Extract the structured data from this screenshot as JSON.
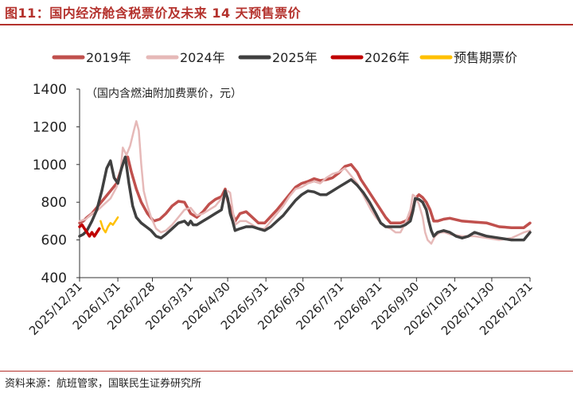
{
  "header": {
    "title": "图11：国内经济舱含税票价及未来 14 天预售票价"
  },
  "footer": {
    "source": "资料来源：航班管家，国联民生证券研究所"
  },
  "chart_data": {
    "type": "line",
    "title": "图11：国内经济舱含税票价及未来 14 天预售票价",
    "annotation": "（国内含燃油附加费票价，元）",
    "ylim": [
      400,
      1400
    ],
    "yticks": [
      400,
      600,
      800,
      1000,
      1200,
      1400
    ],
    "xlim": [
      0,
      365
    ],
    "x_ticks": [
      {
        "label": "2025/12/31",
        "x": 0
      },
      {
        "label": "2026/1/31",
        "x": 31
      },
      {
        "label": "2026/2/28",
        "x": 59
      },
      {
        "label": "2026/3/31",
        "x": 90
      },
      {
        "label": "2026/4/30",
        "x": 120
      },
      {
        "label": "2026/5/31",
        "x": 151
      },
      {
        "label": "2026/6/30",
        "x": 181
      },
      {
        "label": "2026/7/31",
        "x": 212
      },
      {
        "label": "2026/8/31",
        "x": 243
      },
      {
        "label": "2026/9/30",
        "x": 273
      },
      {
        "label": "2026/10/31",
        "x": 304
      },
      {
        "label": "2026/11/30",
        "x": 334
      },
      {
        "label": "2026/12/31",
        "x": 365
      }
    ],
    "x_unit": "days since 2025/12/31",
    "legend_position": "top",
    "series": [
      {
        "name": "2019年",
        "color": "#c0504d",
        "width": 3.5,
        "x": [
          0,
          3,
          6,
          10,
          15,
          20,
          25,
          30,
          33,
          36,
          39,
          42,
          46,
          50,
          55,
          60,
          65,
          70,
          75,
          80,
          85,
          90,
          95,
          100,
          105,
          110,
          115,
          118,
          120,
          122,
          124,
          126,
          130,
          135,
          140,
          145,
          150,
          155,
          160,
          165,
          170,
          175,
          180,
          185,
          190,
          195,
          200,
          205,
          210,
          215,
          220,
          225,
          228,
          232,
          236,
          240,
          244,
          248,
          252,
          256,
          260,
          264,
          268,
          270,
          272,
          275,
          278,
          281,
          284,
          287,
          290,
          295,
          300,
          310,
          320,
          330,
          340,
          350,
          360,
          365
        ],
        "values": [
          690,
          700,
          720,
          740,
          780,
          820,
          860,
          900,
          960,
          1020,
          1040,
          960,
          870,
          800,
          740,
          700,
          710,
          740,
          780,
          805,
          800,
          740,
          720,
          750,
          790,
          815,
          830,
          870,
          810,
          770,
          740,
          700,
          740,
          750,
          720,
          690,
          690,
          725,
          760,
          800,
          840,
          880,
          900,
          910,
          925,
          915,
          920,
          930,
          955,
          990,
          1000,
          960,
          920,
          880,
          840,
          800,
          760,
          720,
          690,
          690,
          690,
          700,
          720,
          760,
          820,
          840,
          825,
          800,
          760,
          700,
          700,
          710,
          715,
          700,
          695,
          690,
          670,
          665,
          665,
          690
        ]
      },
      {
        "name": "2024年",
        "color": "#e6b9b8",
        "width": 2.5,
        "x": [
          0,
          5,
          10,
          15,
          20,
          25,
          30,
          33,
          35,
          38,
          41,
          44,
          46,
          48,
          50,
          52,
          55,
          58,
          62,
          66,
          70,
          75,
          80,
          85,
          90,
          95,
          100,
          105,
          110,
          115,
          120,
          122,
          124,
          126,
          130,
          135,
          140,
          145,
          150,
          155,
          160,
          165,
          170,
          175,
          180,
          185,
          190,
          195,
          200,
          205,
          210,
          215,
          220,
          225,
          228,
          232,
          236,
          240,
          244,
          248,
          252,
          256,
          260,
          264,
          268,
          270,
          272,
          275,
          278,
          280,
          282,
          285,
          288,
          292,
          296,
          300,
          310,
          320,
          330,
          340,
          350,
          360,
          365
        ],
        "values": [
          700,
          710,
          740,
          760,
          790,
          820,
          880,
          950,
          1090,
          1050,
          1100,
          1180,
          1230,
          1180,
          1000,
          860,
          780,
          720,
          660,
          640,
          650,
          680,
          720,
          760,
          770,
          730,
          740,
          760,
          780,
          820,
          860,
          850,
          760,
          680,
          700,
          700,
          680,
          660,
          660,
          700,
          740,
          780,
          830,
          870,
          880,
          900,
          910,
          900,
          930,
          950,
          960,
          980,
          940,
          900,
          860,
          810,
          760,
          720,
          690,
          670,
          660,
          640,
          640,
          690,
          760,
          840,
          830,
          790,
          720,
          640,
          600,
          580,
          620,
          640,
          640,
          630,
          620,
          620,
          610,
          600,
          610,
          640,
          650
        ]
      },
      {
        "name": "2025年",
        "color": "#404040",
        "width": 3.5,
        "x": [
          0,
          3,
          6,
          10,
          14,
          18,
          22,
          25,
          28,
          31,
          34,
          37,
          40,
          43,
          46,
          50,
          54,
          58,
          62,
          66,
          70,
          75,
          80,
          85,
          88,
          90,
          92,
          95,
          100,
          105,
          110,
          115,
          118,
          120,
          122,
          124,
          126,
          130,
          135,
          140,
          145,
          150,
          155,
          160,
          165,
          170,
          175,
          180,
          185,
          190,
          195,
          200,
          205,
          210,
          215,
          220,
          225,
          230,
          235,
          240,
          244,
          248,
          252,
          256,
          260,
          264,
          268,
          270,
          272,
          275,
          278,
          281,
          283,
          285,
          287,
          290,
          295,
          300,
          305,
          310,
          315,
          320,
          330,
          340,
          350,
          360,
          365
        ],
        "values": [
          620,
          630,
          650,
          700,
          760,
          860,
          980,
          1020,
          930,
          900,
          980,
          1040,
          900,
          780,
          720,
          690,
          670,
          650,
          620,
          610,
          630,
          660,
          690,
          700,
          680,
          700,
          680,
          680,
          700,
          720,
          740,
          760,
          860,
          820,
          740,
          700,
          650,
          660,
          670,
          670,
          660,
          650,
          670,
          700,
          730,
          770,
          810,
          840,
          860,
          855,
          840,
          840,
          860,
          880,
          900,
          920,
          890,
          850,
          800,
          740,
          690,
          670,
          670,
          670,
          670,
          680,
          700,
          750,
          820,
          815,
          800,
          760,
          700,
          650,
          620,
          640,
          650,
          640,
          620,
          610,
          620,
          640,
          620,
          610,
          600,
          600,
          640
        ]
      },
      {
        "name": "2026年",
        "color": "#c00000",
        "width": 3.5,
        "x": [
          0,
          2,
          4,
          6,
          8,
          10,
          12,
          14,
          16
        ],
        "values": [
          670,
          680,
          660,
          640,
          620,
          640,
          620,
          640,
          660
        ]
      },
      {
        "name": "预售期票价",
        "color": "#ffc000",
        "width": 2.5,
        "x": [
          17,
          19,
          21,
          23,
          25,
          27,
          29,
          31
        ],
        "values": [
          700,
          660,
          640,
          670,
          690,
          680,
          700,
          720
        ]
      }
    ]
  }
}
